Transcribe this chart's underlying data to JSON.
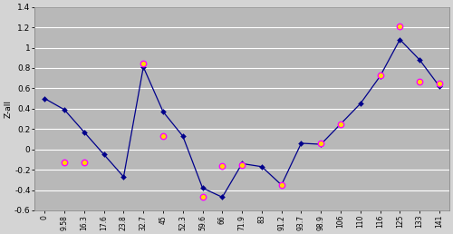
{
  "x_labels": [
    "0",
    "9.58",
    "16.3",
    "17.6",
    "23.8",
    "32.7",
    "45",
    "52.3",
    "59.6",
    "66",
    "71.9",
    "83",
    "91.2",
    "93.7",
    "98.9",
    "106",
    "110",
    "116",
    "125",
    "133",
    "141"
  ],
  "blue_x": [
    0,
    9.58,
    16.3,
    17.6,
    23.8,
    32.7,
    45,
    52.3,
    59.6,
    66,
    71.9,
    83,
    91.2,
    93.7,
    98.9,
    106,
    110,
    116,
    125,
    133,
    141
  ],
  "blue_y": [
    0.5,
    0.39,
    0.17,
    -0.05,
    -0.27,
    0.81,
    0.37,
    0.13,
    -0.38,
    -0.47,
    -0.14,
    -0.17,
    -0.35,
    0.06,
    0.05,
    0.25,
    0.45,
    0.72,
    1.08,
    0.88,
    0.62
  ],
  "yellow_x": [
    9.58,
    16.3,
    32.7,
    45,
    59.6,
    66,
    71.9,
    91.2,
    98.9,
    106,
    116,
    125,
    133,
    141
  ],
  "yellow_y": [
    -0.13,
    -0.13,
    0.84,
    0.13,
    -0.47,
    -0.16,
    -0.15,
    -0.35,
    0.06,
    0.25,
    0.73,
    1.21,
    0.67,
    0.65
  ],
  "blue_line_color": "#00008B",
  "blue_dot_color": "#00008B",
  "yellow_dot_color": "#FFD700",
  "pink_border_color": "#FF00FF",
  "plot_bg_color": "#B8B8B8",
  "fig_bg_color": "#D4D4D4",
  "ylabel": "Z-all",
  "ylim": [
    -0.6,
    1.4
  ],
  "yticks": [
    -0.6,
    -0.4,
    -0.2,
    0,
    0.2,
    0.4,
    0.6,
    0.8,
    1.0,
    1.2,
    1.4
  ],
  "ytick_labels": [
    "-0.6",
    "-0.4",
    "-0.2",
    "0",
    "0.2",
    "0.4",
    "0.6",
    "0.8",
    "1",
    "1.2",
    "1.4"
  ]
}
